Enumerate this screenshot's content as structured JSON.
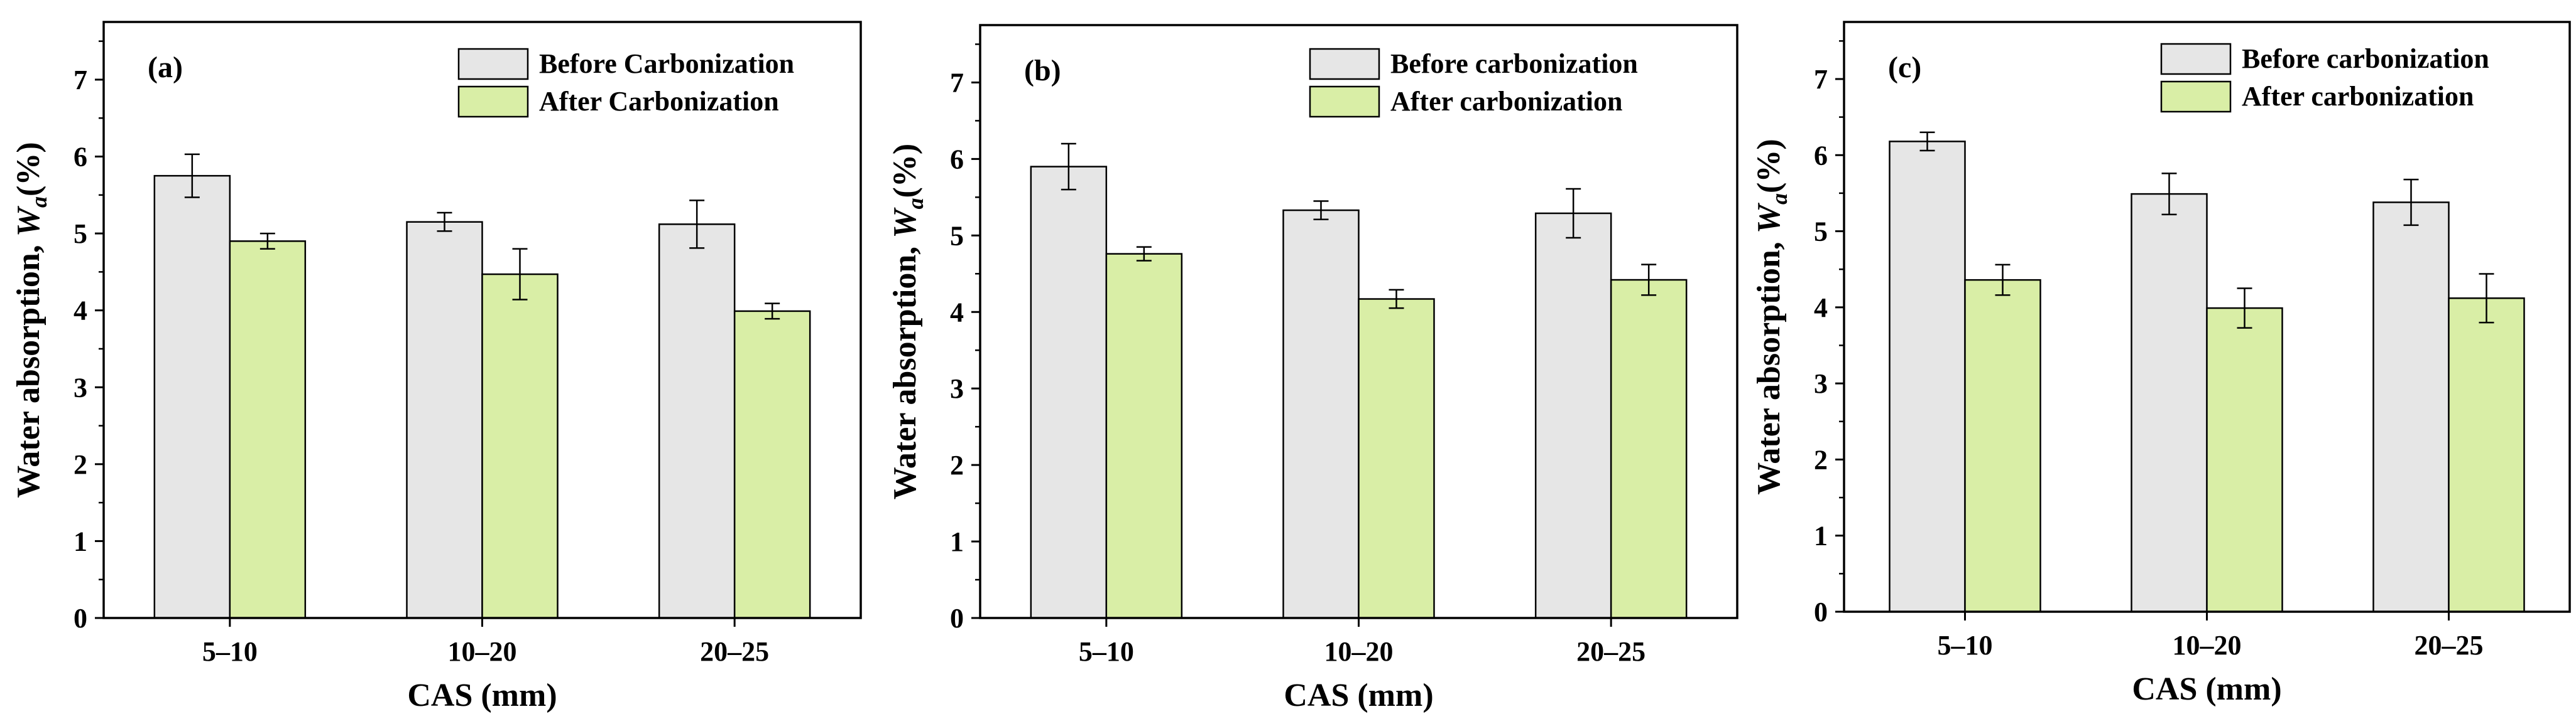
{
  "colors": {
    "before": "#e6e6e6",
    "after": "#d9eea6",
    "axis": "#000000"
  },
  "chart_data": [
    {
      "type": "bar",
      "panel_label": "(a)",
      "categories": [
        "5–10",
        "10–20",
        "20–25"
      ],
      "xlabel": "CAS (mm)",
      "ylabel_prefix": "Water absorption, ",
      "ylabel_symbol": "W",
      "ylabel_subscript": "a",
      "ylabel_suffix": "(%)",
      "ylim": [
        0,
        7.75
      ],
      "yticks": [
        0,
        1,
        2,
        3,
        4,
        5,
        6,
        7
      ],
      "legend_position": "top-right",
      "series": [
        {
          "name": "Before Carbonization",
          "color_key": "before",
          "values": [
            5.75,
            5.15,
            5.12
          ],
          "errors": [
            0.28,
            0.12,
            0.31
          ]
        },
        {
          "name": "After Carbonization",
          "color_key": "after",
          "values": [
            4.9,
            4.47,
            3.99
          ],
          "errors": [
            0.1,
            0.33,
            0.1
          ]
        }
      ]
    },
    {
      "type": "bar",
      "panel_label": "(b)",
      "categories": [
        "5–10",
        "10–20",
        "20–25"
      ],
      "xlabel": "CAS (mm)",
      "ylabel_prefix": "Water absorption, ",
      "ylabel_symbol": "W",
      "ylabel_subscript": "a",
      "ylabel_suffix": "(%)",
      "ylim": [
        0,
        7.75
      ],
      "yticks": [
        0,
        1,
        2,
        3,
        4,
        5,
        6,
        7
      ],
      "legend_position": "top-right",
      "series": [
        {
          "name": "Before carbonization",
          "color_key": "before",
          "values": [
            5.9,
            5.33,
            5.29
          ],
          "errors": [
            0.3,
            0.12,
            0.32
          ]
        },
        {
          "name": "After carbonization",
          "color_key": "after",
          "values": [
            4.76,
            4.17,
            4.42
          ],
          "errors": [
            0.09,
            0.12,
            0.2
          ]
        }
      ]
    },
    {
      "type": "bar",
      "panel_label": "(c)",
      "categories": [
        "5–10",
        "10–20",
        "20–25"
      ],
      "xlabel": "CAS (mm)",
      "ylabel_prefix": "Water absorption, ",
      "ylabel_symbol": "W",
      "ylabel_subscript": "a",
      "ylabel_suffix": "(%)",
      "ylim": [
        0,
        7.75
      ],
      "yticks": [
        0,
        1,
        2,
        3,
        4,
        5,
        6,
        7
      ],
      "legend_position": "top-right",
      "series": [
        {
          "name": "Before carbonization",
          "color_key": "before",
          "values": [
            6.18,
            5.49,
            5.38
          ],
          "errors": [
            0.12,
            0.27,
            0.3
          ]
        },
        {
          "name": "After carbonization",
          "color_key": "after",
          "values": [
            4.36,
            3.99,
            4.12
          ],
          "errors": [
            0.2,
            0.26,
            0.32
          ]
        }
      ]
    }
  ]
}
